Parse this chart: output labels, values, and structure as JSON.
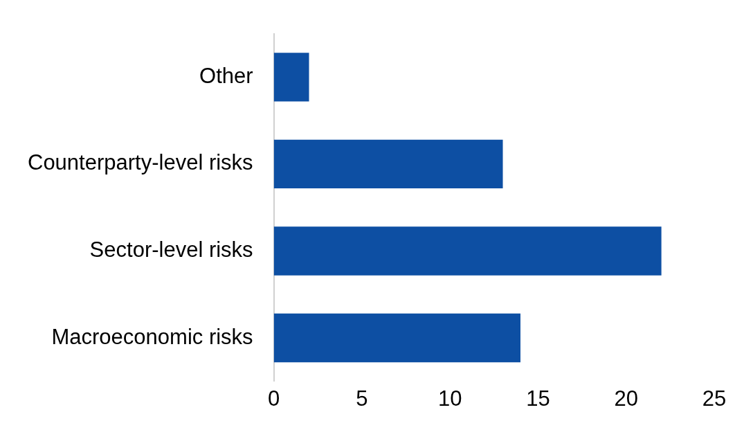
{
  "chart_data": {
    "type": "bar",
    "orientation": "horizontal",
    "categories": [
      "Other",
      "Counterparty-level risks",
      "Sector-level risks",
      "Macroeconomic risks"
    ],
    "values": [
      2,
      13,
      22,
      14
    ],
    "color": "#0d4fa3",
    "xlim": [
      0,
      25
    ],
    "xticks": [
      0,
      5,
      10,
      15,
      20,
      25
    ],
    "grid": false,
    "legend": false
  }
}
